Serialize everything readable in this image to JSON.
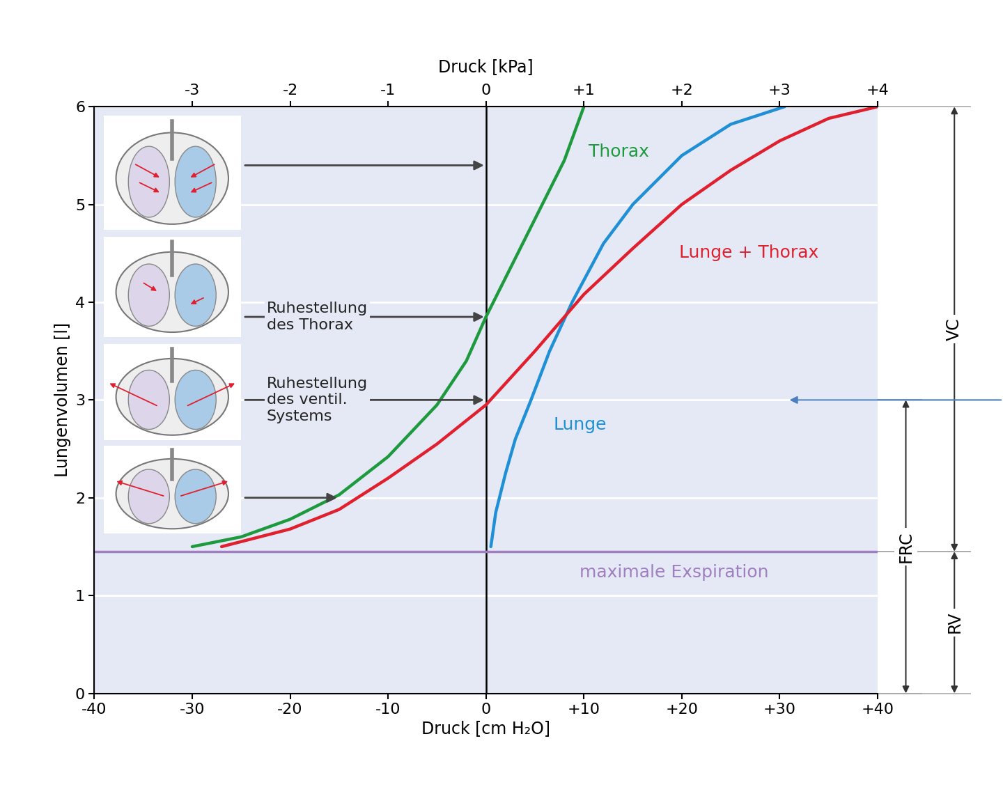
{
  "chart_data": {
    "type": "line",
    "x_label": "Druck [cm H₂O]",
    "x2_label": "Druck [kPa]",
    "y_label": "Lungenvolumen [l]",
    "xlim": [
      -40,
      40
    ],
    "xticks": [
      -40,
      -30,
      -20,
      -10,
      0,
      {
        "value": 10,
        "label": "+10"
      },
      {
        "value": 20,
        "label": "+20"
      },
      {
        "value": 30,
        "label": "+30"
      },
      {
        "value": 40,
        "label": "+40"
      }
    ],
    "x2lim": [
      -4,
      4
    ],
    "x2ticks": [
      -3,
      -2,
      -1,
      0,
      {
        "value": 1,
        "label": "+1"
      },
      {
        "value": 2,
        "label": "+2"
      },
      {
        "value": 3,
        "label": "+3"
      },
      {
        "value": 4,
        "label": "+4"
      }
    ],
    "ylim": [
      0,
      6
    ],
    "yticks": [
      0,
      1,
      2,
      3,
      4,
      5,
      6
    ],
    "grid": "y",
    "vlines": [
      0
    ],
    "series": [
      {
        "name": "Thorax",
        "color": "#1e9a3e",
        "x": [
          -30,
          -25,
          -20,
          -15,
          -10,
          -5,
          -2,
          0,
          3,
          6,
          8,
          10
        ],
        "values": [
          1.5,
          1.6,
          1.78,
          2.03,
          2.42,
          2.95,
          3.4,
          3.85,
          4.45,
          5.05,
          5.45,
          6.0
        ]
      },
      {
        "name": "Lunge",
        "color": "#1f8fd6",
        "x": [
          0.5,
          1,
          2,
          3,
          4.6,
          6.5,
          8.8,
          12,
          15,
          20,
          25,
          30.5
        ],
        "values": [
          1.5,
          1.85,
          2.25,
          2.6,
          3.0,
          3.5,
          4.0,
          4.6,
          5.0,
          5.5,
          5.82,
          6.0
        ]
      },
      {
        "name": "Lunge + Thorax",
        "color": "#e0202e",
        "x": [
          -27,
          -20,
          -15,
          -10,
          -5,
          0,
          5,
          10,
          15,
          20,
          25,
          30,
          35,
          40
        ],
        "values": [
          1.5,
          1.68,
          1.88,
          2.2,
          2.55,
          2.95,
          3.5,
          4.08,
          4.55,
          5.0,
          5.35,
          5.65,
          5.88,
          6.0
        ]
      },
      {
        "name": "maximale Exspiration",
        "color": "#a07fc0",
        "x": [
          -40,
          40
        ],
        "values": [
          1.45,
          1.45
        ]
      }
    ],
    "annotations": [
      {
        "x": 0,
        "y": 5.4
      },
      {
        "text": "Ruhestellung\ndes Thorax",
        "x": 0,
        "y": 3.85
      },
      {
        "text": "Ruhestellung\ndes ventil.\nSystems",
        "x": 0,
        "y": 3.0
      },
      {
        "x": -15,
        "y": 2.0
      }
    ],
    "volumes": [
      {
        "label": "VC",
        "from": 1.45,
        "to": 6
      },
      {
        "label": "FRC",
        "from": 0,
        "to": 3
      },
      {
        "label": "RV",
        "from": 0,
        "to": 1.45
      }
    ]
  }
}
